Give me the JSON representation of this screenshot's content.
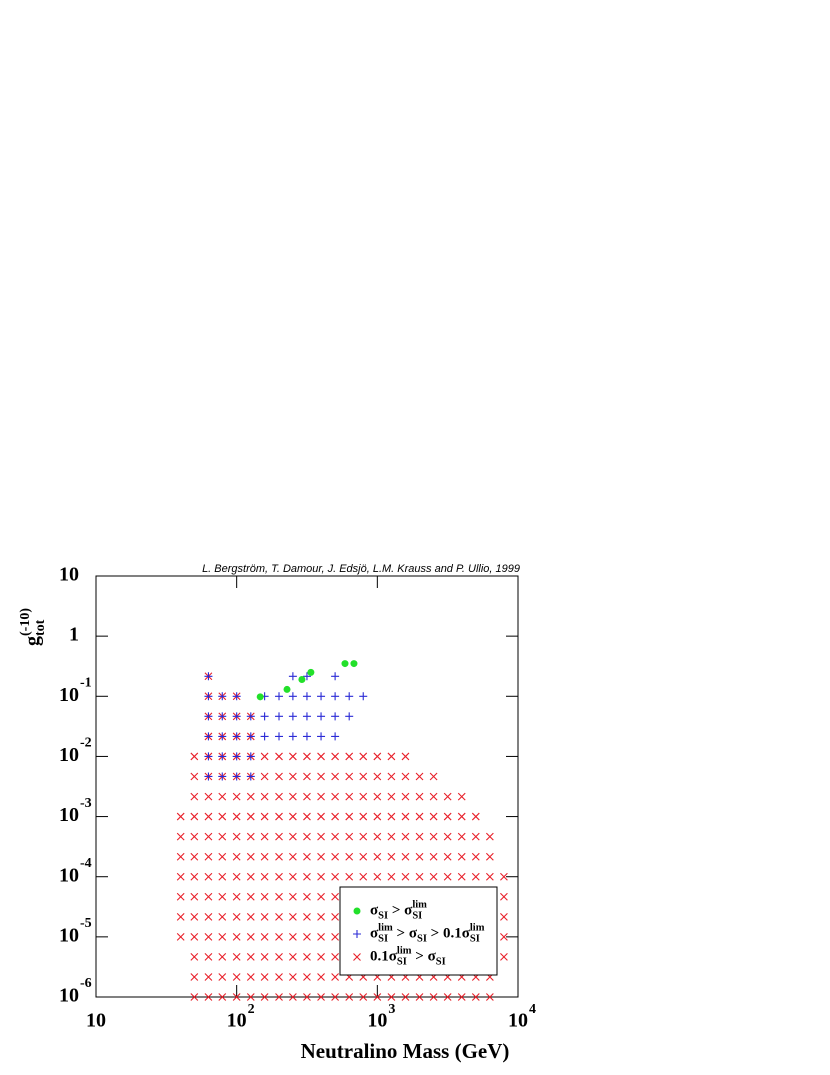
{
  "chart_data": {
    "type": "scatter",
    "credit": "L. Bergström, T. Damour, J. Edsjö, L.M. Krauss and P. Ullio, 1999",
    "xlabel": "Neutralino Mass (GeV)",
    "ylabel": {
      "parts": [
        "g",
        "tot",
        "(-10)"
      ],
      "styles": [
        "n",
        "sub",
        "sup"
      ]
    },
    "xscale": "log",
    "yscale": "log",
    "xlim": [
      10,
      10000
    ],
    "ylim": [
      1e-06,
      10
    ],
    "xticks": [
      {
        "value": 10,
        "label": "10"
      },
      {
        "value": 100,
        "label": "10",
        "exp": "2"
      },
      {
        "value": 1000,
        "label": "10",
        "exp": "3"
      },
      {
        "value": 10000,
        "label": "10",
        "exp": "4"
      }
    ],
    "yticks": [
      {
        "value": 1e-06,
        "label": "10",
        "exp": "-6"
      },
      {
        "value": 1e-05,
        "label": "10",
        "exp": "-5"
      },
      {
        "value": 0.0001,
        "label": "10",
        "exp": "-4"
      },
      {
        "value": 0.001,
        "label": "10",
        "exp": "-3"
      },
      {
        "value": 0.01,
        "label": "10",
        "exp": "-2"
      },
      {
        "value": 0.1,
        "label": "10",
        "exp": "-1"
      },
      1,
      10
    ],
    "legend": "lower right",
    "series": [
      {
        "name": {
          "parts": [
            "0.1σ",
            "SI",
            "lim",
            " > σ",
            "SI"
          ],
          "styles": [
            "n",
            "sub",
            "sup",
            "n",
            "sub"
          ]
        },
        "marker": "x",
        "color": "#e8202a",
        "legend_order": 2,
        "columns": [
          {
            "x": 40,
            "y": [
              1e-05,
              2.15e-05,
              4.64e-05,
              0.0001,
              0.000215,
              0.000464,
              0.001
            ]
          },
          {
            "x": 50,
            "y": [
              1e-06,
              2.15e-06,
              4.64e-06,
              1e-05,
              2.15e-05,
              4.64e-05,
              0.0001,
              0.000215,
              0.000464,
              0.001,
              0.00215,
              0.00464,
              0.01
            ]
          },
          {
            "x": 63,
            "y": [
              1e-06,
              2.15e-06,
              4.64e-06,
              1e-05,
              2.15e-05,
              4.64e-05,
              0.0001,
              0.000215,
              0.000464,
              0.001,
              0.00215,
              0.00464,
              0.01,
              0.0215,
              0.0464,
              0.1,
              0.215
            ]
          },
          {
            "x": 79,
            "y": [
              1e-06,
              2.15e-06,
              4.64e-06,
              1e-05,
              2.15e-05,
              4.64e-05,
              0.0001,
              0.000215,
              0.000464,
              0.001,
              0.00215,
              0.00464,
              0.01,
              0.0215,
              0.0464,
              0.1
            ]
          },
          {
            "x": 100,
            "y": [
              1e-06,
              2.15e-06,
              4.64e-06,
              1e-05,
              2.15e-05,
              4.64e-05,
              0.0001,
              0.000215,
              0.000464,
              0.001,
              0.00215,
              0.00464,
              0.01,
              0.0215,
              0.0464,
              0.1
            ]
          },
          {
            "x": 126,
            "y": [
              1e-06,
              2.15e-06,
              4.64e-06,
              1e-05,
              2.15e-05,
              4.64e-05,
              0.0001,
              0.000215,
              0.000464,
              0.001,
              0.00215,
              0.00464,
              0.01,
              0.0215,
              0.0464
            ]
          },
          {
            "x": 158,
            "y": [
              1e-06,
              2.15e-06,
              4.64e-06,
              1e-05,
              2.15e-05,
              4.64e-05,
              0.0001,
              0.000215,
              0.000464,
              0.001,
              0.00215,
              0.00464,
              0.01
            ]
          },
          {
            "x": 200,
            "y": [
              1e-06,
              2.15e-06,
              4.64e-06,
              1e-05,
              2.15e-05,
              4.64e-05,
              0.0001,
              0.000215,
              0.000464,
              0.001,
              0.00215,
              0.00464,
              0.01
            ]
          },
          {
            "x": 251,
            "y": [
              1e-06,
              2.15e-06,
              4.64e-06,
              1e-05,
              2.15e-05,
              4.64e-05,
              0.0001,
              0.000215,
              0.000464,
              0.001,
              0.00215,
              0.00464,
              0.01
            ]
          },
          {
            "x": 316,
            "y": [
              1e-06,
              2.15e-06,
              4.64e-06,
              1e-05,
              2.15e-05,
              4.64e-05,
              0.0001,
              0.000215,
              0.000464,
              0.001,
              0.00215,
              0.00464,
              0.01
            ]
          },
          {
            "x": 398,
            "y": [
              1e-06,
              2.15e-06,
              4.64e-06,
              1e-05,
              2.15e-05,
              4.64e-05,
              0.0001,
              0.000215,
              0.000464,
              0.001,
              0.00215,
              0.00464,
              0.01
            ]
          },
          {
            "x": 501,
            "y": [
              1e-06,
              2.15e-06,
              4.64e-06,
              1e-05,
              2.15e-05,
              4.64e-05,
              0.0001,
              0.000215,
              0.000464,
              0.001,
              0.00215,
              0.00464,
              0.01
            ]
          },
          {
            "x": 631,
            "y": [
              1e-06,
              2.15e-06,
              4.64e-06,
              1e-05,
              2.15e-05,
              4.64e-05,
              0.0001,
              0.000215,
              0.000464,
              0.001,
              0.00215,
              0.00464,
              0.01
            ]
          },
          {
            "x": 794,
            "y": [
              1e-06,
              2.15e-06,
              4.64e-06,
              1e-05,
              2.15e-05,
              4.64e-05,
              0.0001,
              0.000215,
              0.000464,
              0.001,
              0.00215,
              0.00464,
              0.01
            ]
          },
          {
            "x": 1000,
            "y": [
              1e-06,
              2.15e-06,
              4.64e-06,
              1e-05,
              2.15e-05,
              4.64e-05,
              0.0001,
              0.000215,
              0.000464,
              0.001,
              0.00215,
              0.00464,
              0.01
            ]
          },
          {
            "x": 1259,
            "y": [
              1e-06,
              2.15e-06,
              4.64e-06,
              1e-05,
              2.15e-05,
              4.64e-05,
              0.0001,
              0.000215,
              0.000464,
              0.001,
              0.00215,
              0.00464,
              0.01
            ]
          },
          {
            "x": 1585,
            "y": [
              1e-06,
              2.15e-06,
              4.64e-06,
              1e-05,
              2.15e-05,
              4.64e-05,
              0.0001,
              0.000215,
              0.000464,
              0.001,
              0.00215,
              0.00464,
              0.01
            ]
          },
          {
            "x": 1995,
            "y": [
              1e-06,
              2.15e-06,
              4.64e-06,
              1e-05,
              2.15e-05,
              4.64e-05,
              0.0001,
              0.000215,
              0.000464,
              0.001,
              0.00215,
              0.00464
            ]
          },
          {
            "x": 2512,
            "y": [
              1e-06,
              2.15e-06,
              4.64e-06,
              1e-05,
              2.15e-05,
              4.64e-05,
              0.0001,
              0.000215,
              0.000464,
              0.001,
              0.00215,
              0.00464
            ]
          },
          {
            "x": 3162,
            "y": [
              1e-06,
              2.15e-06,
              4.64e-06,
              1e-05,
              2.15e-05,
              4.64e-05,
              0.0001,
              0.000215,
              0.000464,
              0.001,
              0.00215
            ]
          },
          {
            "x": 3981,
            "y": [
              1e-06,
              2.15e-06,
              4.64e-06,
              1e-05,
              2.15e-05,
              4.64e-05,
              0.0001,
              0.000215,
              0.000464,
              0.001,
              0.00215
            ]
          },
          {
            "x": 5012,
            "y": [
              1e-06,
              2.15e-06,
              4.64e-06,
              1e-05,
              2.15e-05,
              4.64e-05,
              0.0001,
              0.000215,
              0.000464,
              0.001
            ]
          },
          {
            "x": 6310,
            "y": [
              1e-06,
              2.15e-06,
              4.64e-06,
              1e-05,
              2.15e-05,
              4.64e-05,
              0.0001,
              0.000215,
              0.000464
            ]
          },
          {
            "x": 7943,
            "y": [
              4.64e-06,
              1e-05,
              2.15e-05,
              4.64e-05,
              0.0001
            ]
          }
        ]
      },
      {
        "name": {
          "parts": [
            "σ",
            "SI",
            "lim",
            " > σ",
            "SI",
            " > 0.1σ",
            "SI",
            "lim"
          ],
          "styles": [
            "n",
            "sub",
            "sup",
            "n",
            "sub",
            "n",
            "sub",
            "sup"
          ]
        },
        "marker": "+",
        "color": "#2b2bd6",
        "legend_order": 1,
        "columns": [
          {
            "x": 63,
            "y": [
              0.00464,
              0.01,
              0.0215,
              0.0464,
              0.1,
              0.215
            ]
          },
          {
            "x": 79,
            "y": [
              0.00464,
              0.01,
              0.0215,
              0.0464,
              0.1
            ]
          },
          {
            "x": 100,
            "y": [
              0.00464,
              0.01,
              0.0215,
              0.0464,
              0.1
            ]
          },
          {
            "x": 126,
            "y": [
              0.00464,
              0.01,
              0.0215,
              0.0464
            ]
          },
          {
            "x": 158,
            "y": [
              0.0215,
              0.0464,
              0.1
            ]
          },
          {
            "x": 200,
            "y": [
              0.0215,
              0.0464,
              0.1
            ]
          },
          {
            "x": 251,
            "y": [
              0.0215,
              0.0464,
              0.1,
              0.215
            ]
          },
          {
            "x": 316,
            "y": [
              0.0215,
              0.0464,
              0.1,
              0.215
            ]
          },
          {
            "x": 398,
            "y": [
              0.0215,
              0.0464,
              0.1
            ]
          },
          {
            "x": 501,
            "y": [
              0.0215,
              0.0464,
              0.1,
              0.215
            ]
          },
          {
            "x": 631,
            "y": [
              0.0464,
              0.1
            ]
          },
          {
            "x": 794,
            "y": [
              0.1
            ]
          }
        ]
      },
      {
        "name": {
          "parts": [
            "σ",
            "SI",
            " > σ",
            "SI",
            "lim"
          ],
          "styles": [
            "n",
            "sub",
            "n",
            "sub",
            "sup"
          ]
        },
        "marker": "o",
        "color": "#22e02a",
        "legend_order": 0,
        "columns": [
          {
            "x": 147,
            "y": [
              0.098
            ]
          },
          {
            "x": 228,
            "y": [
              0.13
            ]
          },
          {
            "x": 291,
            "y": [
              0.19
            ]
          },
          {
            "x": 337,
            "y": [
              0.25
            ]
          },
          {
            "x": 589,
            "y": [
              0.35
            ]
          },
          {
            "x": 682,
            "y": [
              0.35
            ]
          }
        ]
      }
    ]
  }
}
